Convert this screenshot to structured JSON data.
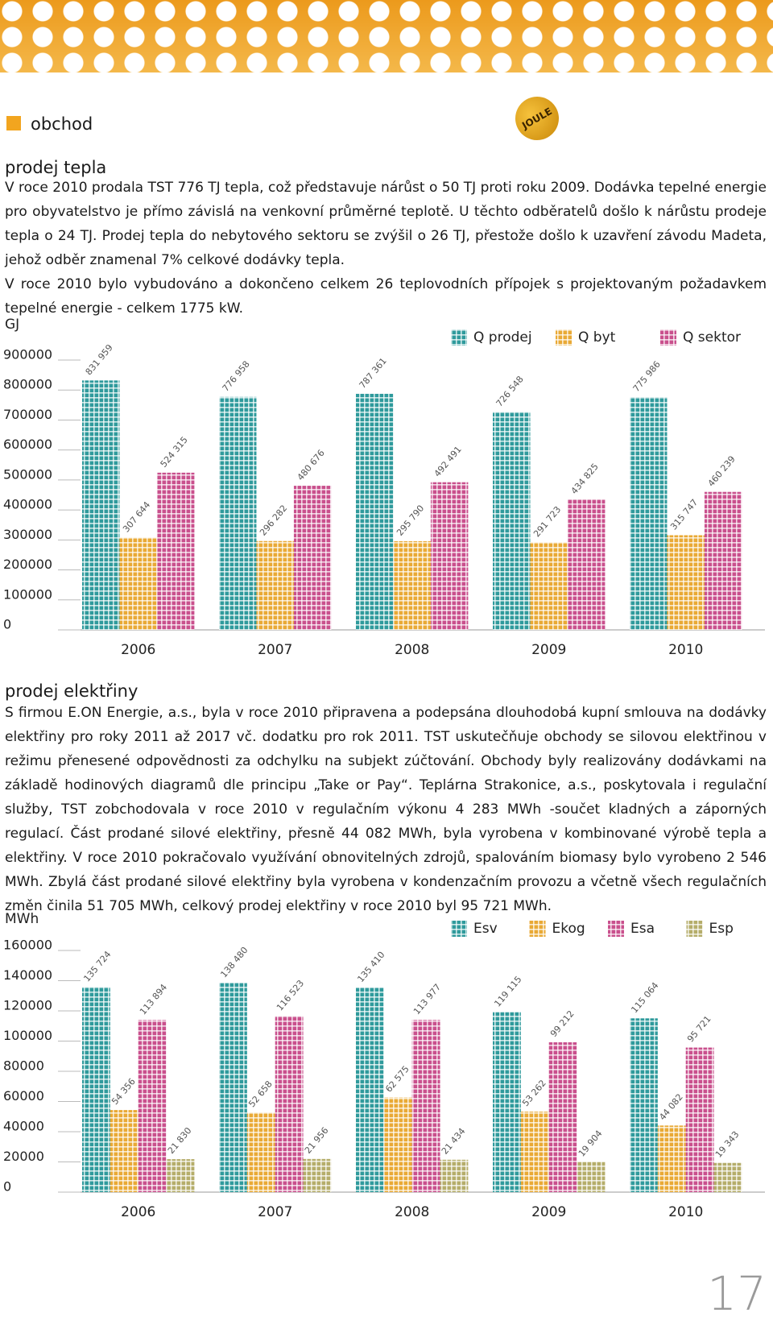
{
  "section_label": "obchod",
  "logo": "JOULE",
  "heat": {
    "heading": "prodej tepla",
    "paragraphs": [
      "V roce 2010 prodala TST 776 TJ tepla, což představuje nárůst o 50 TJ proti roku 2009. Dodávka tepelné energie pro obyvatelstvo je přímo závislá na venkovní průměrné teplotě. U těchto odběratelů došlo k nárůstu prodeje tepla o 24 TJ. Prodej tepla do nebytového sektoru se zvýšil o 26 TJ, přestože došlo k uzavření závodu Madeta, jehož odběr znamenal 7% celkové dodávky tepla.",
      "V roce 2010 bylo vybudováno a dokončeno celkem 26 teplovodních přípojek s projektovaným požadavkem tepelné energie - celkem 1775 kW."
    ]
  },
  "electricity": {
    "heading": "prodej elektřiny",
    "paragraphs": [
      "S firmou E.ON Energie, a.s., byla v roce 2010 připravena a podepsána dlouhodobá kupní smlouva na dodávky elektřiny pro roky 2011 až 2017 vč. dodatku pro rok 2011. TST uskutečňuje obchody se silovou elektřinou v režimu přenesené odpovědnosti za odchylku na subjekt zúčtování. Obchody byly realizovány dodávkami na základě hodinových diagramů dle principu „Take or Pay“. Teplárna Strakonice, a.s., poskytovala i regulační služby, TST zobchodovala v roce 2010 v regulačním výkonu 4 283 MWh -součet kladných a záporných regulací. Část prodané silové elektřiny, přesně 44 082 MWh, byla vyrobena v kombinované výrobě tepla a elektřiny. V roce 2010 pokračovalo využívání obnovitelných zdrojů, spalováním biomasy bylo vyrobeno 2 546 MWh. Zbylá část prodané silové elektřiny byla vyrobena v kondenzačním provozu a včetně všech regulačních změn činila 51 705 MWh, celkový prodej elektřiny v roce 2010 byl 95 721 MWh."
    ]
  },
  "page_number": "17",
  "chart_data": [
    {
      "type": "bar",
      "y_label": "GJ",
      "legend": "top-right",
      "categories": [
        "2006",
        "2007",
        "2008",
        "2009",
        "2010"
      ],
      "ylim": [
        0,
        900000
      ],
      "yticks": [
        0,
        100000,
        200000,
        300000,
        400000,
        500000,
        600000,
        700000,
        800000,
        900000
      ],
      "series": [
        {
          "name": "Q prodej",
          "color": "#2f9a9c",
          "values": [
            831959,
            776958,
            787361,
            726548,
            775986
          ],
          "value_labels": [
            "831 959",
            "776 958",
            "787 361",
            "726 548",
            "775 986"
          ]
        },
        {
          "name": "Q byt",
          "color": "#e9a935",
          "values": [
            307644,
            296282,
            295790,
            291723,
            315747
          ],
          "value_labels": [
            "307 644",
            "296 282",
            "295 790",
            "291 723",
            "315 747"
          ]
        },
        {
          "name": "Q sektor",
          "color": "#c9508d",
          "values": [
            524315,
            480676,
            492491,
            434825,
            460239
          ],
          "value_labels": [
            "524 315",
            "480 676",
            "492 491",
            "434 825",
            "460 239"
          ]
        }
      ]
    },
    {
      "type": "bar",
      "y_label": "MWh",
      "legend": "top-right",
      "categories": [
        "2006",
        "2007",
        "2008",
        "2009",
        "2010"
      ],
      "ylim": [
        0,
        160000
      ],
      "yticks": [
        0,
        20000,
        40000,
        60000,
        80000,
        100000,
        120000,
        140000,
        160000
      ],
      "series": [
        {
          "name": "Esv",
          "color": "#2f9a9c",
          "values": [
            135724,
            138480,
            135410,
            119115,
            115064
          ],
          "value_labels": [
            "135 724",
            "138 480",
            "135 410",
            "119 115",
            "115 064"
          ]
        },
        {
          "name": "Ekog",
          "color": "#e9a935",
          "values": [
            54356,
            52658,
            62575,
            53262,
            44082
          ],
          "value_labels": [
            "54 356",
            "52 658",
            "62 575",
            "53 262",
            "44 082"
          ]
        },
        {
          "name": "Esa",
          "color": "#c9508d",
          "values": [
            113894,
            116523,
            113977,
            99212,
            95721
          ],
          "value_labels": [
            "113 894",
            "116 523",
            "113 977",
            "99 212",
            "95 721"
          ]
        },
        {
          "name": "Esp",
          "color": "#b5ad6a",
          "values": [
            21830,
            21956,
            21434,
            19904,
            19343
          ],
          "value_labels": [
            "21 830",
            "21 956",
            "21 434",
            "19 904",
            "19 343"
          ]
        }
      ]
    }
  ]
}
